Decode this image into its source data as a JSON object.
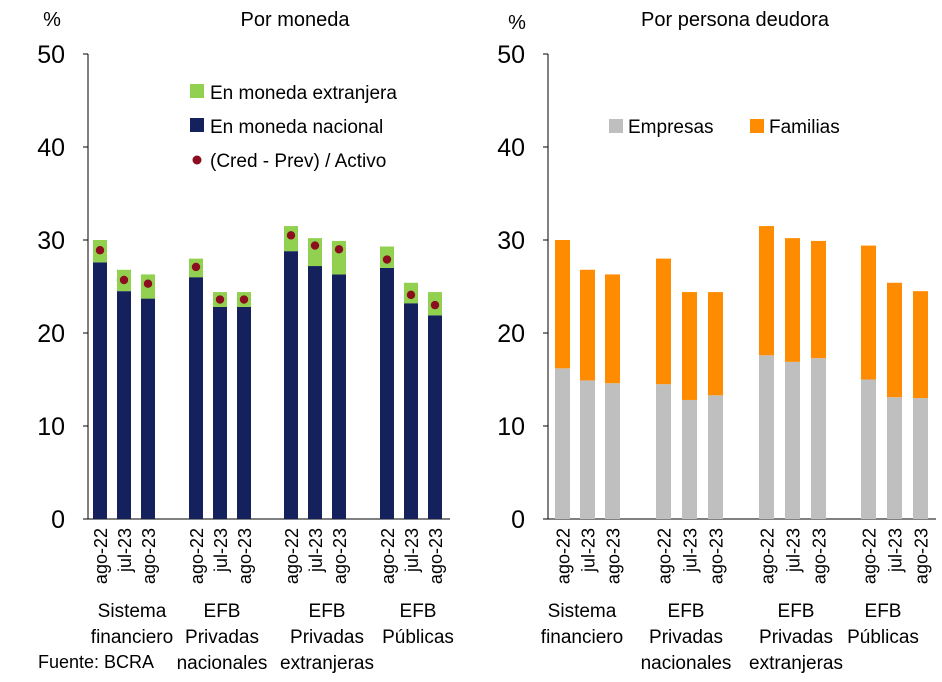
{
  "source": "Fuente: BCRA",
  "colors": {
    "foreign": "#92d050",
    "national": "#14215c",
    "dot": "#8b0d1f",
    "empresas": "#bfbfbf",
    "familias": "#ff8c00"
  },
  "chart_data": [
    {
      "type": "bar",
      "stacked": true,
      "title": "Por moneda",
      "ylabel": "%",
      "ylim": [
        0,
        50
      ],
      "yticks": [
        0,
        10,
        20,
        30,
        40,
        50
      ],
      "legend_position": "top-right",
      "groups": [
        {
          "label_lines": [
            "Sistema",
            "financiero"
          ],
          "periods": [
            "ago-22",
            "jul-23",
            "ago-23"
          ]
        },
        {
          "label_lines": [
            "EFB",
            "Privadas",
            "nacionales"
          ],
          "periods": [
            "ago-22",
            "jul-23",
            "ago-23"
          ]
        },
        {
          "label_lines": [
            "EFB",
            "Privadas",
            "extranjeras"
          ],
          "periods": [
            "ago-22",
            "jul-23",
            "ago-23"
          ]
        },
        {
          "label_lines": [
            "EFB",
            "Públicas"
          ],
          "periods": [
            "ago-22",
            "jul-23",
            "ago-23"
          ]
        }
      ],
      "series": [
        {
          "name": "En moneda nacional",
          "type": "bar",
          "values": [
            27.6,
            24.5,
            23.7,
            26.0,
            22.8,
            22.8,
            28.8,
            27.2,
            26.3,
            27.0,
            23.2,
            21.9
          ]
        },
        {
          "name": "En moneda extranjera",
          "type": "bar",
          "values": [
            2.4,
            2.3,
            2.6,
            2.0,
            1.6,
            1.6,
            2.7,
            3.0,
            3.6,
            2.3,
            2.2,
            2.5
          ]
        },
        {
          "name": "(Cred - Prev) / Activo",
          "type": "scatter",
          "values": [
            28.9,
            25.7,
            25.3,
            27.1,
            23.6,
            23.6,
            30.5,
            29.4,
            29.0,
            27.9,
            24.1,
            23.0
          ]
        }
      ]
    },
    {
      "type": "bar",
      "stacked": true,
      "title": "Por persona deudora",
      "ylabel": "%",
      "ylim": [
        0,
        50
      ],
      "yticks": [
        0,
        10,
        20,
        30,
        40,
        50
      ],
      "legend_position": "top",
      "groups": [
        {
          "label_lines": [
            "Sistema",
            "financiero"
          ],
          "periods": [
            "ago-22",
            "jul-23",
            "ago-23"
          ]
        },
        {
          "label_lines": [
            "EFB",
            "Privadas",
            "nacionales"
          ],
          "periods": [
            "ago-22",
            "jul-23",
            "ago-23"
          ]
        },
        {
          "label_lines": [
            "EFB",
            "Privadas",
            "extranjeras"
          ],
          "periods": [
            "ago-22",
            "jul-23",
            "ago-23"
          ]
        },
        {
          "label_lines": [
            "EFB",
            "Públicas"
          ],
          "periods": [
            "ago-22",
            "jul-23",
            "ago-23"
          ]
        }
      ],
      "series": [
        {
          "name": "Empresas",
          "type": "bar",
          "values": [
            16.2,
            14.9,
            14.6,
            14.5,
            12.8,
            13.3,
            17.6,
            16.9,
            17.3,
            15.0,
            13.1,
            13.0
          ]
        },
        {
          "name": "Familias",
          "type": "bar",
          "values": [
            13.8,
            11.9,
            11.7,
            13.5,
            11.6,
            11.1,
            13.9,
            13.3,
            12.6,
            14.4,
            12.3,
            11.5
          ]
        }
      ]
    }
  ]
}
